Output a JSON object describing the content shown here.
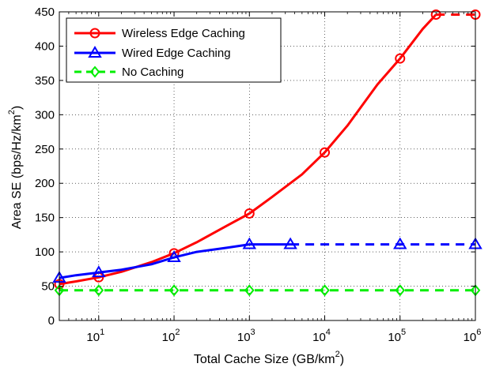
{
  "chart_data": {
    "type": "line",
    "xlabel": "Total Cache Size (GB/km",
    "xlabel_sup": "2",
    "xlabel_close": ")",
    "ylabel": "Area SE (bps/Hz/km",
    "ylabel_sup": "2",
    "ylabel_close": ")",
    "x_scale": "log",
    "xlim": [
      3,
      1000000
    ],
    "ylim": [
      0,
      450
    ],
    "grid": "dotted",
    "legend_position": "top-left",
    "x_ticks": [
      {
        "value": 10,
        "base": "10",
        "exp": "1"
      },
      {
        "value": 100,
        "base": "10",
        "exp": "2"
      },
      {
        "value": 1000,
        "base": "10",
        "exp": "3"
      },
      {
        "value": 10000,
        "base": "10",
        "exp": "4"
      },
      {
        "value": 100000,
        "base": "10",
        "exp": "5"
      },
      {
        "value": 1000000,
        "base": "10",
        "exp": "6"
      }
    ],
    "y_ticks": [
      0,
      50,
      100,
      150,
      200,
      250,
      300,
      350,
      400,
      450
    ],
    "series": [
      {
        "name": "Wireless Edge Caching",
        "color": "#ff0000",
        "marker": "circle",
        "line_style": "solid",
        "x": [
          3,
          10,
          100,
          1000,
          10000,
          100000,
          300000
        ],
        "y": [
          53,
          63,
          98,
          156,
          245,
          382,
          446
        ],
        "line_x": [
          3,
          5,
          10,
          20,
          50,
          100,
          200,
          500,
          1000,
          2000,
          5000,
          10000,
          20000,
          50000,
          100000,
          200000,
          300000
        ],
        "line_y": [
          53,
          57,
          63,
          71,
          85,
          98,
          114,
          138,
          156,
          180,
          213,
          245,
          284,
          344,
          382,
          425,
          446
        ],
        "dashed_x": [
          300000,
          1000000
        ],
        "dashed_y": [
          446,
          446
        ],
        "markers_x": [
          3,
          10,
          100,
          1000,
          10000,
          100000,
          300000,
          1000000
        ],
        "markers_y": [
          53,
          63,
          98,
          156,
          245,
          382,
          446,
          446
        ]
      },
      {
        "name": "Wired Edge Caching",
        "color": "#0000ff",
        "marker": "triangle",
        "line_style": "solid",
        "line_x": [
          3,
          5,
          10,
          20,
          50,
          100,
          200,
          500,
          1000,
          3500
        ],
        "line_y": [
          62,
          66,
          70,
          74,
          82,
          92,
          100,
          106,
          111,
          111
        ],
        "dashed_x": [
          3500,
          1000000
        ],
        "dashed_y": [
          111,
          111
        ],
        "markers_x": [
          3,
          10,
          100,
          1000,
          3500,
          100000,
          1000000
        ],
        "markers_y": [
          62,
          70,
          92,
          111,
          111,
          111,
          111
        ]
      },
      {
        "name": "No Caching",
        "color": "#00ee00",
        "marker": "diamond",
        "line_style": "dashed",
        "dashed_x": [
          3,
          1000000
        ],
        "dashed_y": [
          44,
          44
        ],
        "markers_x": [
          3,
          10,
          100,
          1000,
          10000,
          100000,
          1000000
        ],
        "markers_y": [
          44,
          44,
          44,
          44,
          44,
          44,
          44
        ]
      }
    ]
  }
}
